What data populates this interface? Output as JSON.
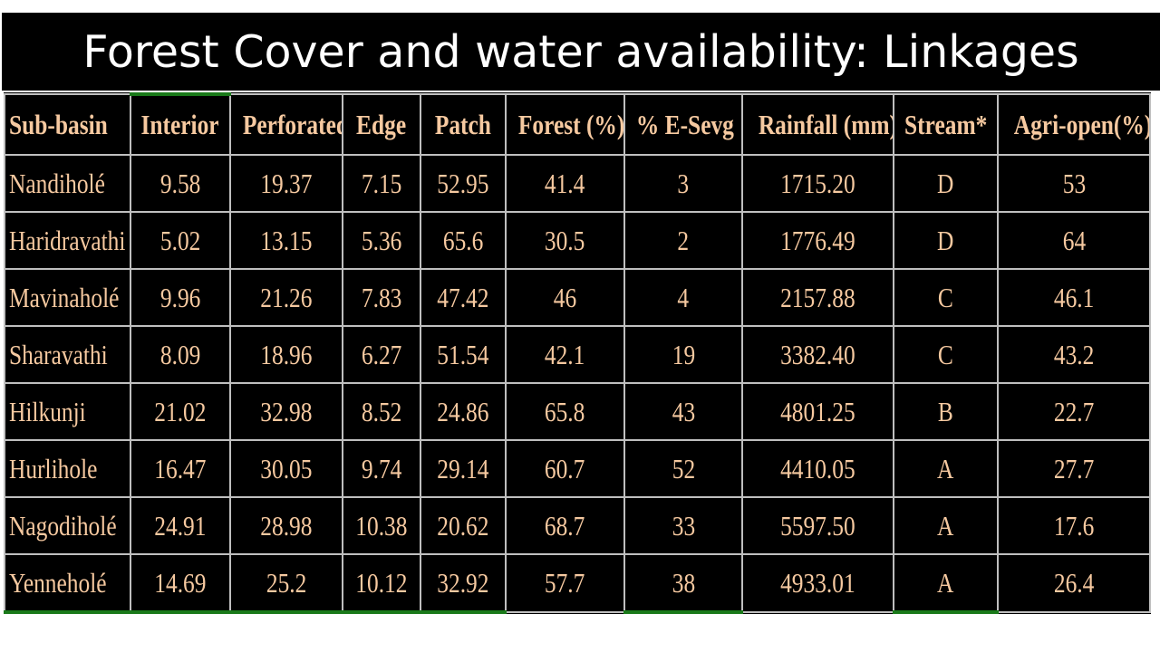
{
  "title": "Forest Cover and water availability: Linkages",
  "table": {
    "headers": [
      "Sub-basin",
      "Interior",
      "Perforated",
      "Edge",
      "Patch",
      "Forest (%)",
      "% E-Sevg",
      "Rainfall (mm)",
      "Stream*",
      "Agri-open(%)"
    ],
    "rows": [
      [
        "Nandiholé",
        "9.58",
        "19.37",
        "7.15",
        "52.95",
        "41.4",
        "3",
        "1715.20",
        "D",
        "53"
      ],
      [
        "Haridravathi",
        "5.02",
        "13.15",
        "5.36",
        "65.6",
        "30.5",
        "2",
        "1776.49",
        "D",
        "64"
      ],
      [
        "Mavinaholé",
        "9.96",
        "21.26",
        "7.83",
        "47.42",
        "46",
        "4",
        "2157.88",
        "C",
        "46.1"
      ],
      [
        "Sharavathi",
        "8.09",
        "18.96",
        "6.27",
        "51.54",
        "42.1",
        "19",
        "3382.40",
        "C",
        "43.2"
      ],
      [
        "Hilkunji",
        "21.02",
        "32.98",
        "8.52",
        "24.86",
        "65.8",
        "43",
        "4801.25",
        "B",
        "22.7"
      ],
      [
        "Hurlihole",
        "16.47",
        "30.05",
        "9.74",
        "29.14",
        "60.7",
        "52",
        "4410.05",
        "A",
        "27.7"
      ],
      [
        "Nagodiholé",
        "24.91",
        "28.98",
        "10.38",
        "20.62",
        "68.7",
        "33",
        "5597.50",
        "A",
        "17.6"
      ],
      [
        "Yenneholé",
        "14.69",
        "25.2",
        "10.12",
        "32.92",
        "57.7",
        "38",
        "4933.01",
        "A",
        "26.4"
      ]
    ]
  },
  "colors": {
    "background": "#000000",
    "text": "#f6c9a0",
    "grid": "#bfbfbf",
    "accent": "#1a7a1a"
  }
}
